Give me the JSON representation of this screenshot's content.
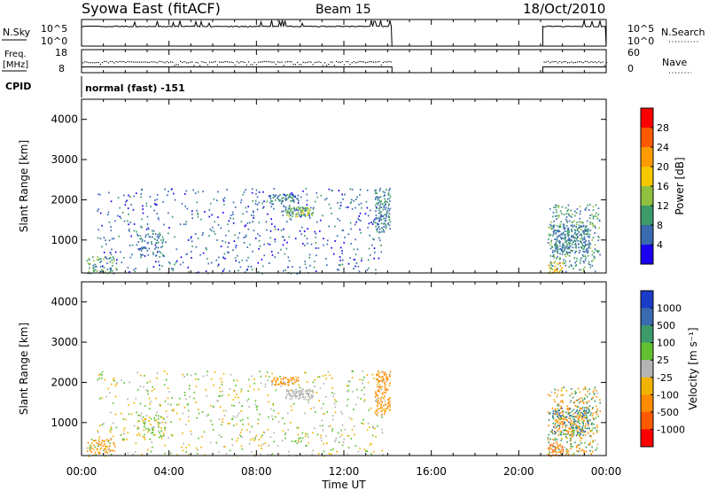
{
  "header": {
    "station": "Syowa East (fitACF)",
    "beam": "Beam 15",
    "date": "18/Oct/2010"
  },
  "noise_panel": {
    "left_label": "N.Sky",
    "right_label": "N.Search",
    "left_ticks": [
      "10^5",
      "10^0"
    ],
    "right_ticks": [
      "10^5",
      "10^0"
    ]
  },
  "freq_panel": {
    "left_label_1": "Freq.",
    "left_label_2": "[MHz]",
    "right_label": "Nave",
    "left_ticks": [
      "18",
      "8"
    ],
    "right_ticks": [
      "60",
      "0"
    ]
  },
  "cpid": {
    "label": "CPID",
    "program": "normal (fast) -151"
  },
  "power_panel": {
    "ylabel": "Slant Range [km]",
    "colorbar_label": "Power [dB]",
    "colorbar_ticks": [
      "28",
      "24",
      "20",
      "16",
      "12",
      "8",
      "4"
    ],
    "colorbar_colors": [
      "#ff0000",
      "#ff5a00",
      "#ff9b00",
      "#f5c800",
      "#90c040",
      "#3d9a6a",
      "#3a6ab0",
      "#1a00f0"
    ]
  },
  "velocity_panel": {
    "ylabel": "Slant Range [km]",
    "colorbar_label": "Velocity [m s⁻¹]",
    "colorbar_ticks": [
      "1000",
      "500",
      "100",
      "25",
      "-25",
      "-100",
      "-500",
      "-1000"
    ],
    "colorbar_colors": [
      "#1a3cc8",
      "#3a6ab0",
      "#3d9a6a",
      "#60c030",
      "#b4b4b4",
      "#f0b400",
      "#ff8c00",
      "#ff5a00",
      "#ff0000"
    ]
  },
  "x_axis": {
    "label": "Time UT",
    "ticks": [
      "00:00",
      "04:00",
      "08:00",
      "12:00",
      "16:00",
      "20:00",
      "00:00"
    ]
  },
  "chart_data": {
    "type": "heatmap",
    "x_unit": "hours UT",
    "xlim": [
      0,
      24
    ],
    "ylim": [
      180,
      4500
    ],
    "y_ticks": [
      1000,
      2000,
      3000,
      4000
    ],
    "data_intervals": [
      [
        0.0,
        14.2
      ],
      [
        21.1,
        24.0
      ]
    ],
    "noise_range": [
      1,
      100000
    ],
    "freq_range": [
      8,
      18
    ],
    "nave_range": [
      0,
      60
    ],
    "power_clusters": [
      {
        "t0": 0.2,
        "t1": 1.6,
        "r0": 180,
        "r1": 600,
        "dens": 0.35,
        "v0": 6,
        "v1": 14
      },
      {
        "t0": 0.7,
        "t1": 13.8,
        "r0": 180,
        "r1": 2300,
        "dens": 0.07,
        "v0": 2,
        "v1": 10
      },
      {
        "t0": 2.5,
        "t1": 3.8,
        "r0": 600,
        "r1": 1200,
        "dens": 0.25,
        "v0": 4,
        "v1": 10
      },
      {
        "t0": 8.6,
        "t1": 9.9,
        "r0": 1950,
        "r1": 2150,
        "dens": 0.6,
        "v0": 4,
        "v1": 12
      },
      {
        "t0": 9.3,
        "t1": 10.6,
        "r0": 1600,
        "r1": 1850,
        "dens": 0.75,
        "v0": 6,
        "v1": 18
      },
      {
        "t0": 13.4,
        "t1": 14.1,
        "r0": 1200,
        "r1": 2300,
        "dens": 0.5,
        "v0": 4,
        "v1": 12
      },
      {
        "t0": 21.3,
        "t1": 23.7,
        "r0": 200,
        "r1": 1900,
        "dens": 0.22,
        "v0": 4,
        "v1": 14
      },
      {
        "t0": 21.5,
        "t1": 23.2,
        "r0": 700,
        "r1": 1400,
        "dens": 0.55,
        "v0": 4,
        "v1": 10
      },
      {
        "t0": 21.3,
        "t1": 22.0,
        "r0": 180,
        "r1": 500,
        "dens": 0.45,
        "v0": 12,
        "v1": 28
      }
    ],
    "velocity_clusters": [
      {
        "t0": 0.2,
        "t1": 1.6,
        "r0": 180,
        "r1": 600,
        "dens": 0.35,
        "v0": -500,
        "v1": 100
      },
      {
        "t0": 0.7,
        "t1": 13.8,
        "r0": 180,
        "r1": 2300,
        "dens": 0.07,
        "v0": -100,
        "v1": 100
      },
      {
        "t0": 2.5,
        "t1": 3.8,
        "r0": 600,
        "r1": 1200,
        "dens": 0.25,
        "v0": -100,
        "v1": 100
      },
      {
        "t0": 8.6,
        "t1": 9.9,
        "r0": 1950,
        "r1": 2150,
        "dens": 0.6,
        "v0": -500,
        "v1": 25
      },
      {
        "t0": 9.3,
        "t1": 10.6,
        "r0": 1600,
        "r1": 1850,
        "dens": 0.75,
        "v0": -25,
        "v1": 25
      },
      {
        "t0": 13.4,
        "t1": 14.1,
        "r0": 1200,
        "r1": 2300,
        "dens": 0.5,
        "v0": -500,
        "v1": 25
      },
      {
        "t0": 21.3,
        "t1": 23.7,
        "r0": 200,
        "r1": 1900,
        "dens": 0.22,
        "v0": -500,
        "v1": 500
      },
      {
        "t0": 21.5,
        "t1": 23.2,
        "r0": 700,
        "r1": 1400,
        "dens": 0.55,
        "v0": -500,
        "v1": 1000
      },
      {
        "t0": 21.3,
        "t1": 22.0,
        "r0": 180,
        "r1": 500,
        "dens": 0.45,
        "v0": -1000,
        "v1": -100
      }
    ]
  }
}
